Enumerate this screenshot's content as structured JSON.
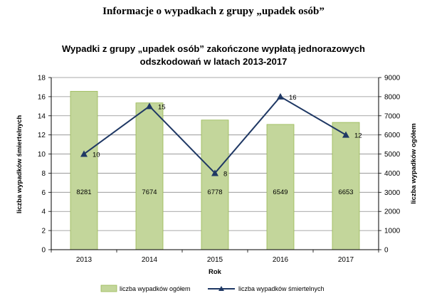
{
  "heading": "Informacje o wypadkach z grupy „upadek osób”",
  "colors": {
    "bar_fill": "#c3d69b",
    "bar_stroke": "#98b954",
    "line": "#1f3864",
    "grid": "#8c8c8c"
  },
  "chart_data": {
    "type": "bar",
    "title_lines": [
      "Wypadki z grupy „upadek osób” zakończone wypłatą jednorazowych",
      "odszkodowań w latach 2013-2017"
    ],
    "categories": [
      "2013",
      "2014",
      "2015",
      "2016",
      "2017"
    ],
    "xlabel": "Rok",
    "ylabel_left": "liczba wypadków śmiertelnych",
    "ylabel_right": "liczba wypadków ogółem",
    "ylim_left": [
      0,
      18
    ],
    "yticks_left": [
      0,
      2,
      4,
      6,
      8,
      10,
      12,
      14,
      16,
      18
    ],
    "ylim_right": [
      0,
      9000
    ],
    "yticks_right": [
      0,
      1000,
      2000,
      3000,
      4000,
      5000,
      6000,
      7000,
      8000,
      9000
    ],
    "grid": true,
    "legend_position": "bottom",
    "series": [
      {
        "name": "liczba wypadków ogółem",
        "kind": "bar",
        "axis": "right",
        "values": [
          8281,
          7674,
          6778,
          6549,
          6653
        ],
        "labels": [
          "8281",
          "7674",
          "6778",
          "6549",
          "6653"
        ]
      },
      {
        "name": "liczba wypadków śmiertelnych",
        "kind": "line",
        "axis": "left",
        "values": [
          10,
          15,
          8,
          16,
          12
        ],
        "labels": [
          "10",
          "15",
          "8",
          "16",
          "12"
        ]
      }
    ]
  }
}
